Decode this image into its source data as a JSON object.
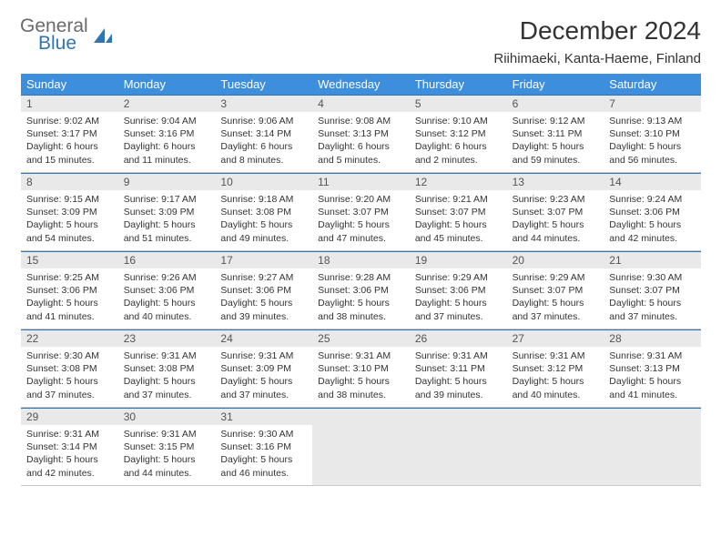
{
  "brand": {
    "general": "General",
    "blue": "Blue"
  },
  "title": "December 2024",
  "location": "Riihimaeki, Kanta-Haeme, Finland",
  "header_bg": "#3E8EDE",
  "rule_color": "#2F75B5",
  "weekdays": [
    "Sunday",
    "Monday",
    "Tuesday",
    "Wednesday",
    "Thursday",
    "Friday",
    "Saturday"
  ],
  "days": [
    {
      "n": "1",
      "sr": "Sunrise: 9:02 AM",
      "ss": "Sunset: 3:17 PM",
      "dl": "Daylight: 6 hours and 15 minutes."
    },
    {
      "n": "2",
      "sr": "Sunrise: 9:04 AM",
      "ss": "Sunset: 3:16 PM",
      "dl": "Daylight: 6 hours and 11 minutes."
    },
    {
      "n": "3",
      "sr": "Sunrise: 9:06 AM",
      "ss": "Sunset: 3:14 PM",
      "dl": "Daylight: 6 hours and 8 minutes."
    },
    {
      "n": "4",
      "sr": "Sunrise: 9:08 AM",
      "ss": "Sunset: 3:13 PM",
      "dl": "Daylight: 6 hours and 5 minutes."
    },
    {
      "n": "5",
      "sr": "Sunrise: 9:10 AM",
      "ss": "Sunset: 3:12 PM",
      "dl": "Daylight: 6 hours and 2 minutes."
    },
    {
      "n": "6",
      "sr": "Sunrise: 9:12 AM",
      "ss": "Sunset: 3:11 PM",
      "dl": "Daylight: 5 hours and 59 minutes."
    },
    {
      "n": "7",
      "sr": "Sunrise: 9:13 AM",
      "ss": "Sunset: 3:10 PM",
      "dl": "Daylight: 5 hours and 56 minutes."
    },
    {
      "n": "8",
      "sr": "Sunrise: 9:15 AM",
      "ss": "Sunset: 3:09 PM",
      "dl": "Daylight: 5 hours and 54 minutes."
    },
    {
      "n": "9",
      "sr": "Sunrise: 9:17 AM",
      "ss": "Sunset: 3:09 PM",
      "dl": "Daylight: 5 hours and 51 minutes."
    },
    {
      "n": "10",
      "sr": "Sunrise: 9:18 AM",
      "ss": "Sunset: 3:08 PM",
      "dl": "Daylight: 5 hours and 49 minutes."
    },
    {
      "n": "11",
      "sr": "Sunrise: 9:20 AM",
      "ss": "Sunset: 3:07 PM",
      "dl": "Daylight: 5 hours and 47 minutes."
    },
    {
      "n": "12",
      "sr": "Sunrise: 9:21 AM",
      "ss": "Sunset: 3:07 PM",
      "dl": "Daylight: 5 hours and 45 minutes."
    },
    {
      "n": "13",
      "sr": "Sunrise: 9:23 AM",
      "ss": "Sunset: 3:07 PM",
      "dl": "Daylight: 5 hours and 44 minutes."
    },
    {
      "n": "14",
      "sr": "Sunrise: 9:24 AM",
      "ss": "Sunset: 3:06 PM",
      "dl": "Daylight: 5 hours and 42 minutes."
    },
    {
      "n": "15",
      "sr": "Sunrise: 9:25 AM",
      "ss": "Sunset: 3:06 PM",
      "dl": "Daylight: 5 hours and 41 minutes."
    },
    {
      "n": "16",
      "sr": "Sunrise: 9:26 AM",
      "ss": "Sunset: 3:06 PM",
      "dl": "Daylight: 5 hours and 40 minutes."
    },
    {
      "n": "17",
      "sr": "Sunrise: 9:27 AM",
      "ss": "Sunset: 3:06 PM",
      "dl": "Daylight: 5 hours and 39 minutes."
    },
    {
      "n": "18",
      "sr": "Sunrise: 9:28 AM",
      "ss": "Sunset: 3:06 PM",
      "dl": "Daylight: 5 hours and 38 minutes."
    },
    {
      "n": "19",
      "sr": "Sunrise: 9:29 AM",
      "ss": "Sunset: 3:06 PM",
      "dl": "Daylight: 5 hours and 37 minutes."
    },
    {
      "n": "20",
      "sr": "Sunrise: 9:29 AM",
      "ss": "Sunset: 3:07 PM",
      "dl": "Daylight: 5 hours and 37 minutes."
    },
    {
      "n": "21",
      "sr": "Sunrise: 9:30 AM",
      "ss": "Sunset: 3:07 PM",
      "dl": "Daylight: 5 hours and 37 minutes."
    },
    {
      "n": "22",
      "sr": "Sunrise: 9:30 AM",
      "ss": "Sunset: 3:08 PM",
      "dl": "Daylight: 5 hours and 37 minutes."
    },
    {
      "n": "23",
      "sr": "Sunrise: 9:31 AM",
      "ss": "Sunset: 3:08 PM",
      "dl": "Daylight: 5 hours and 37 minutes."
    },
    {
      "n": "24",
      "sr": "Sunrise: 9:31 AM",
      "ss": "Sunset: 3:09 PM",
      "dl": "Daylight: 5 hours and 37 minutes."
    },
    {
      "n": "25",
      "sr": "Sunrise: 9:31 AM",
      "ss": "Sunset: 3:10 PM",
      "dl": "Daylight: 5 hours and 38 minutes."
    },
    {
      "n": "26",
      "sr": "Sunrise: 9:31 AM",
      "ss": "Sunset: 3:11 PM",
      "dl": "Daylight: 5 hours and 39 minutes."
    },
    {
      "n": "27",
      "sr": "Sunrise: 9:31 AM",
      "ss": "Sunset: 3:12 PM",
      "dl": "Daylight: 5 hours and 40 minutes."
    },
    {
      "n": "28",
      "sr": "Sunrise: 9:31 AM",
      "ss": "Sunset: 3:13 PM",
      "dl": "Daylight: 5 hours and 41 minutes."
    },
    {
      "n": "29",
      "sr": "Sunrise: 9:31 AM",
      "ss": "Sunset: 3:14 PM",
      "dl": "Daylight: 5 hours and 42 minutes."
    },
    {
      "n": "30",
      "sr": "Sunrise: 9:31 AM",
      "ss": "Sunset: 3:15 PM",
      "dl": "Daylight: 5 hours and 44 minutes."
    },
    {
      "n": "31",
      "sr": "Sunrise: 9:30 AM",
      "ss": "Sunset: 3:16 PM",
      "dl": "Daylight: 5 hours and 46 minutes."
    }
  ],
  "trailing_blanks": 4
}
